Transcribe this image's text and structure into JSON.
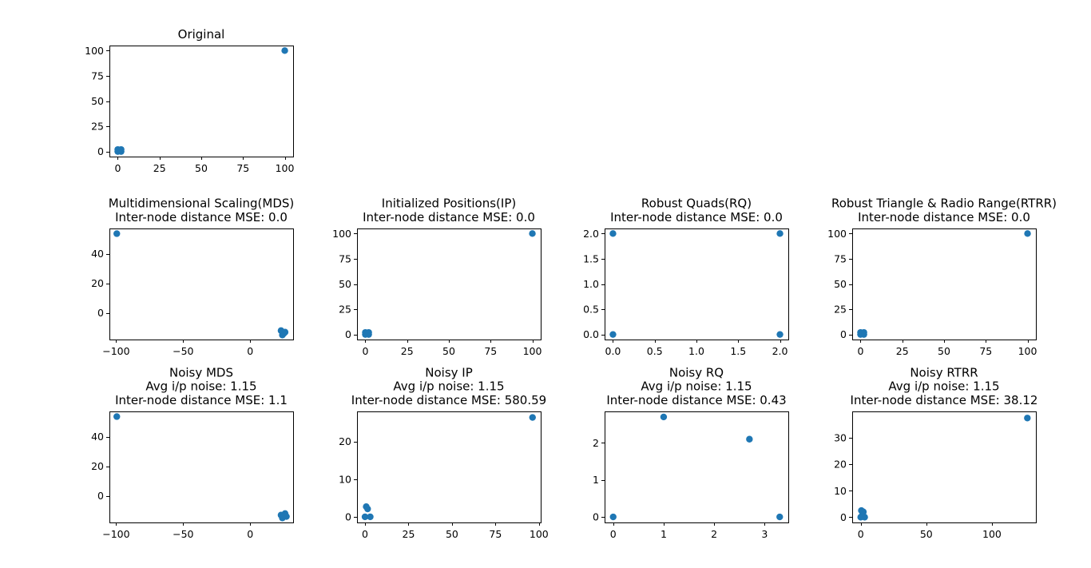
{
  "marker_color": "#1f77b4",
  "chart_data": [
    {
      "type": "scatter",
      "title_lines": [
        "Original"
      ],
      "xlim": [
        -5,
        105
      ],
      "ylim": [
        -5,
        105
      ],
      "xticks": [
        0,
        25,
        50,
        75,
        100
      ],
      "xticklabels": [
        "0",
        "25",
        "50",
        "75",
        "100"
      ],
      "yticks": [
        0,
        25,
        50,
        75,
        100
      ],
      "yticklabels": [
        "0",
        "25",
        "50",
        "75",
        "100"
      ],
      "points": [
        [
          0,
          0
        ],
        [
          0,
          2
        ],
        [
          2,
          0
        ],
        [
          2,
          2
        ],
        [
          1,
          1
        ],
        [
          100,
          100
        ]
      ]
    },
    {
      "type": "scatter",
      "title_lines": [
        "Multidimensional Scaling(MDS)",
        "Inter-node distance MSE: 0.0"
      ],
      "xlim": [
        -105,
        32
      ],
      "ylim": [
        -18,
        57
      ],
      "xticks": [
        -100,
        -50,
        0
      ],
      "xticklabels": [
        "−100",
        "−50",
        "0"
      ],
      "yticks": [
        0,
        20,
        40
      ],
      "yticklabels": [
        "0",
        "20",
        "40"
      ],
      "points": [
        [
          -99.5,
          53.5
        ],
        [
          23,
          -12
        ],
        [
          25,
          -14
        ],
        [
          24,
          -15
        ],
        [
          26,
          -13
        ],
        [
          24.5,
          -13.5
        ]
      ]
    },
    {
      "type": "scatter",
      "title_lines": [
        "Initialized Positions(IP)",
        "Inter-node distance MSE: 0.0"
      ],
      "xlim": [
        -5,
        105
      ],
      "ylim": [
        -5,
        105
      ],
      "xticks": [
        0,
        25,
        50,
        75,
        100
      ],
      "xticklabels": [
        "0",
        "25",
        "50",
        "75",
        "100"
      ],
      "yticks": [
        0,
        25,
        50,
        75,
        100
      ],
      "yticklabels": [
        "0",
        "25",
        "50",
        "75",
        "100"
      ],
      "points": [
        [
          0,
          0
        ],
        [
          0,
          2
        ],
        [
          2,
          0
        ],
        [
          2,
          2
        ],
        [
          1,
          1
        ],
        [
          100,
          100
        ]
      ]
    },
    {
      "type": "scatter",
      "title_lines": [
        "Robust Quads(RQ)",
        "Inter-node distance MSE: 0.0"
      ],
      "xlim": [
        -0.1,
        2.1
      ],
      "ylim": [
        -0.1,
        2.1
      ],
      "xticks": [
        0,
        0.5,
        1,
        1.5,
        2
      ],
      "xticklabels": [
        "0.0",
        "0.5",
        "1.0",
        "1.5",
        "2.0"
      ],
      "yticks": [
        0,
        0.5,
        1,
        1.5,
        2
      ],
      "yticklabels": [
        "0.0",
        "0.5",
        "1.0",
        "1.5",
        "2.0"
      ],
      "points": [
        [
          0,
          0
        ],
        [
          0,
          2
        ],
        [
          2,
          0
        ],
        [
          2,
          2
        ]
      ]
    },
    {
      "type": "scatter",
      "title_lines": [
        "Robust Triangle & Radio Range(RTRR)",
        "Inter-node distance MSE: 0.0"
      ],
      "xlim": [
        -5,
        105
      ],
      "ylim": [
        -5,
        105
      ],
      "xticks": [
        0,
        25,
        50,
        75,
        100
      ],
      "xticklabels": [
        "0",
        "25",
        "50",
        "75",
        "100"
      ],
      "yticks": [
        0,
        25,
        50,
        75,
        100
      ],
      "yticklabels": [
        "0",
        "25",
        "50",
        "75",
        "100"
      ],
      "points": [
        [
          0,
          0
        ],
        [
          0,
          2
        ],
        [
          2,
          0
        ],
        [
          2,
          2
        ],
        [
          1,
          1
        ],
        [
          100,
          100
        ]
      ]
    },
    {
      "type": "scatter",
      "title_lines": [
        "Noisy MDS",
        "Avg i/p noise: 1.15",
        "Inter-node distance MSE: 1.1"
      ],
      "xlim": [
        -105,
        32
      ],
      "ylim": [
        -18,
        57
      ],
      "xticks": [
        -100,
        -50,
        0
      ],
      "xticklabels": [
        "−100",
        "−50",
        "0"
      ],
      "yticks": [
        0,
        20,
        40
      ],
      "yticklabels": [
        "0",
        "20",
        "40"
      ],
      "points": [
        [
          -99.5,
          53.5
        ],
        [
          23,
          -13
        ],
        [
          26,
          -12
        ],
        [
          24,
          -15
        ],
        [
          27,
          -14
        ],
        [
          25,
          -13.5
        ]
      ]
    },
    {
      "type": "scatter",
      "title_lines": [
        "Noisy IP",
        "Avg i/p noise: 1.15",
        "Inter-node distance MSE: 580.59"
      ],
      "xlim": [
        -4.6,
        101
      ],
      "ylim": [
        -1.5,
        28
      ],
      "xticks": [
        0,
        25,
        50,
        75,
        100
      ],
      "xticklabels": [
        "0",
        "25",
        "50",
        "75",
        "100"
      ],
      "yticks": [
        0,
        10,
        20
      ],
      "yticklabels": [
        "0",
        "10",
        "20"
      ],
      "points": [
        [
          0,
          0
        ],
        [
          0.7,
          2.7
        ],
        [
          1.5,
          2.1
        ],
        [
          3,
          0
        ],
        [
          96.3,
          26.4
        ]
      ]
    },
    {
      "type": "scatter",
      "title_lines": [
        "Noisy RQ",
        "Avg i/p noise: 1.15",
        "Inter-node distance MSE: 0.43"
      ],
      "xlim": [
        -0.17,
        3.47
      ],
      "ylim": [
        -0.15,
        2.85
      ],
      "xticks": [
        0,
        1,
        2,
        3
      ],
      "xticklabels": [
        "0",
        "1",
        "2",
        "3"
      ],
      "yticks": [
        0,
        1,
        2
      ],
      "yticklabels": [
        "0",
        "1",
        "2"
      ],
      "points": [
        [
          0,
          0
        ],
        [
          1,
          2.7
        ],
        [
          2.7,
          2.1
        ],
        [
          3.3,
          0
        ]
      ]
    },
    {
      "type": "scatter",
      "title_lines": [
        "Noisy RTRR",
        "Avg i/p noise: 1.15",
        "Inter-node distance MSE: 38.12"
      ],
      "xlim": [
        -6.5,
        133.5
      ],
      "ylim": [
        -2,
        40
      ],
      "xticks": [
        0,
        50,
        100
      ],
      "xticklabels": [
        "0",
        "50",
        "100"
      ],
      "yticks": [
        0,
        10,
        20,
        30
      ],
      "yticklabels": [
        "0",
        "10",
        "20",
        "30"
      ],
      "points": [
        [
          0,
          0
        ],
        [
          0.5,
          2.5
        ],
        [
          2,
          2
        ],
        [
          3,
          0
        ],
        [
          1,
          0.5
        ],
        [
          127,
          37.5
        ]
      ]
    }
  ]
}
